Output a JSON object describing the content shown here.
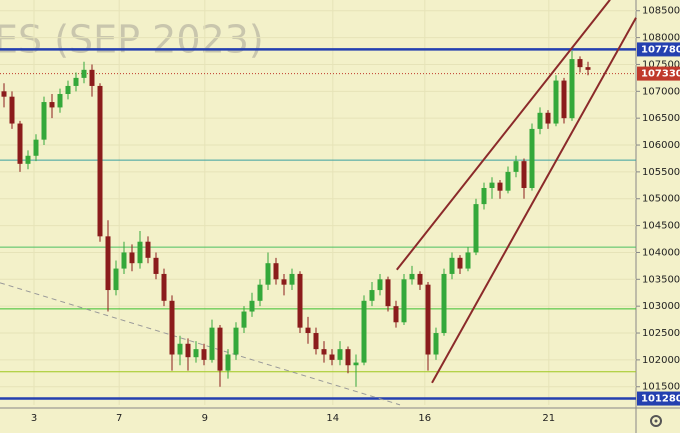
{
  "chart_data": {
    "type": "candlestick",
    "title": "ES (SEP 2023)",
    "candles": [
      [
        107000,
        107150,
        106700,
        106900
      ],
      [
        106900,
        107000,
        106300,
        106400
      ],
      [
        106400,
        106450,
        105500,
        105650
      ],
      [
        105650,
        105900,
        105550,
        105800
      ],
      [
        105800,
        106200,
        105700,
        106100
      ],
      [
        106100,
        106900,
        106000,
        106800
      ],
      [
        106800,
        106950,
        106500,
        106700
      ],
      [
        106700,
        107050,
        106600,
        106950
      ],
      [
        106950,
        107200,
        106850,
        107100
      ],
      [
        107100,
        107350,
        107000,
        107250
      ],
      [
        107250,
        107550,
        107150,
        107400
      ],
      [
        107400,
        107500,
        106900,
        107100
      ],
      [
        107100,
        107150,
        104200,
        104300
      ],
      [
        104300,
        104600,
        102900,
        103300
      ],
      [
        103300,
        103850,
        103200,
        103700
      ],
      [
        103700,
        104200,
        103600,
        104000
      ],
      [
        104000,
        104150,
        103650,
        103800
      ],
      [
        103800,
        104400,
        103700,
        104200
      ],
      [
        104200,
        104300,
        103800,
        103900
      ],
      [
        103900,
        104000,
        103500,
        103600
      ],
      [
        103600,
        103700,
        103000,
        103100
      ],
      [
        103100,
        103200,
        101800,
        102100
      ],
      [
        102100,
        102450,
        101900,
        102300
      ],
      [
        102300,
        102400,
        101800,
        102050
      ],
      [
        102050,
        102350,
        101950,
        102200
      ],
      [
        102200,
        102300,
        101900,
        102000
      ],
      [
        102000,
        102750,
        101950,
        102600
      ],
      [
        102600,
        102650,
        101500,
        101800
      ],
      [
        101800,
        102200,
        101650,
        102100
      ],
      [
        102100,
        102700,
        102000,
        102600
      ],
      [
        102600,
        103000,
        102500,
        102900
      ],
      [
        102900,
        103250,
        102800,
        103100
      ],
      [
        103100,
        103500,
        103000,
        103400
      ],
      [
        103400,
        104000,
        103300,
        103800
      ],
      [
        103800,
        103900,
        103400,
        103500
      ],
      [
        103500,
        103600,
        103200,
        103400
      ],
      [
        103400,
        103700,
        103300,
        103600
      ],
      [
        103600,
        103650,
        102500,
        102600
      ],
      [
        102600,
        102800,
        102300,
        102500
      ],
      [
        102500,
        102600,
        102100,
        102200
      ],
      [
        102200,
        102350,
        101950,
        102100
      ],
      [
        102100,
        102200,
        101900,
        102000
      ],
      [
        102000,
        102350,
        101900,
        102200
      ],
      [
        102200,
        102250,
        101750,
        101900
      ],
      [
        101900,
        102100,
        101500,
        101950
      ],
      [
        101950,
        103200,
        101900,
        103100
      ],
      [
        103100,
        103450,
        103000,
        103300
      ],
      [
        103300,
        103600,
        103200,
        103500
      ],
      [
        103500,
        103550,
        102900,
        103000
      ],
      [
        103000,
        103100,
        102600,
        102700
      ],
      [
        102700,
        103600,
        102650,
        103500
      ],
      [
        103500,
        103750,
        103400,
        103600
      ],
      [
        103600,
        103650,
        103300,
        103400
      ],
      [
        103400,
        103450,
        101800,
        102100
      ],
      [
        102100,
        102600,
        102000,
        102500
      ],
      [
        102500,
        103700,
        102450,
        103600
      ],
      [
        103600,
        104000,
        103500,
        103900
      ],
      [
        103900,
        103950,
        103600,
        103700
      ],
      [
        103700,
        104100,
        103650,
        104000
      ],
      [
        104000,
        105000,
        103950,
        104900
      ],
      [
        104900,
        105300,
        104800,
        105200
      ],
      [
        105200,
        105400,
        105000,
        105300
      ],
      [
        105300,
        105350,
        105000,
        105150
      ],
      [
        105150,
        105600,
        105100,
        105500
      ],
      [
        105500,
        105800,
        105400,
        105700
      ],
      [
        105700,
        105750,
        105000,
        105200
      ],
      [
        105200,
        106400,
        105150,
        106300
      ],
      [
        106300,
        106700,
        106200,
        106600
      ],
      [
        106600,
        106650,
        106300,
        106400
      ],
      [
        106400,
        107300,
        106350,
        107200
      ],
      [
        107200,
        107250,
        106400,
        106500
      ],
      [
        106500,
        107750,
        106450,
        107600
      ],
      [
        107600,
        107650,
        107350,
        107450
      ],
      [
        107450,
        107550,
        107300,
        107400
      ]
    ],
    "up_color": "#34a83a",
    "down_color": "#8b1c1c",
    "xlim": [
      0,
      79.5
    ],
    "xticks": [
      {
        "value": 4.25,
        "label": "3"
      },
      {
        "value": 14.9,
        "label": "7"
      },
      {
        "value": 25.6,
        "label": "9"
      },
      {
        "value": 41.6,
        "label": "14"
      },
      {
        "value": 53.1,
        "label": "16"
      },
      {
        "value": 68.6,
        "label": "21"
      }
    ],
    "ylim": [
      101160,
      108700
    ],
    "yticks": [
      101500,
      102000,
      102500,
      103000,
      103500,
      104000,
      104500,
      105000,
      105500,
      106000,
      106500,
      107000,
      107500,
      108000,
      108500
    ],
    "levels": [
      {
        "value": 107780,
        "color": "#2440b0",
        "style": "solid",
        "box": true
      },
      {
        "value": 107330,
        "color": "#c0392b",
        "style": "dotted",
        "box": true
      },
      {
        "value": 105720,
        "color": "#3aa0a0",
        "style": "solid",
        "box": false
      },
      {
        "value": 104100,
        "color": "#4cc060",
        "style": "solid",
        "box": false
      },
      {
        "value": 102950,
        "color": "#3cc030",
        "style": "solid",
        "box": false
      },
      {
        "value": 101780,
        "color": "#a0c820",
        "style": "solid",
        "box": false
      },
      {
        "value": 101280,
        "color": "#2440b0",
        "style": "solid",
        "box": true
      }
    ],
    "trendlines": [
      {
        "x": [
          49.6,
          76.25
        ],
        "y": [
          103677,
          108705
        ],
        "color": "#8b2a2a",
        "style": "solid"
      },
      {
        "x": [
          54,
          79.5
        ],
        "y": [
          101573,
          108370
        ],
        "color": "#8b2a2a",
        "style": "solid"
      },
      {
        "x": [
          0,
          50
        ],
        "y": [
          103435,
          101163
        ],
        "color": "#999999",
        "style": "dashed"
      }
    ]
  }
}
